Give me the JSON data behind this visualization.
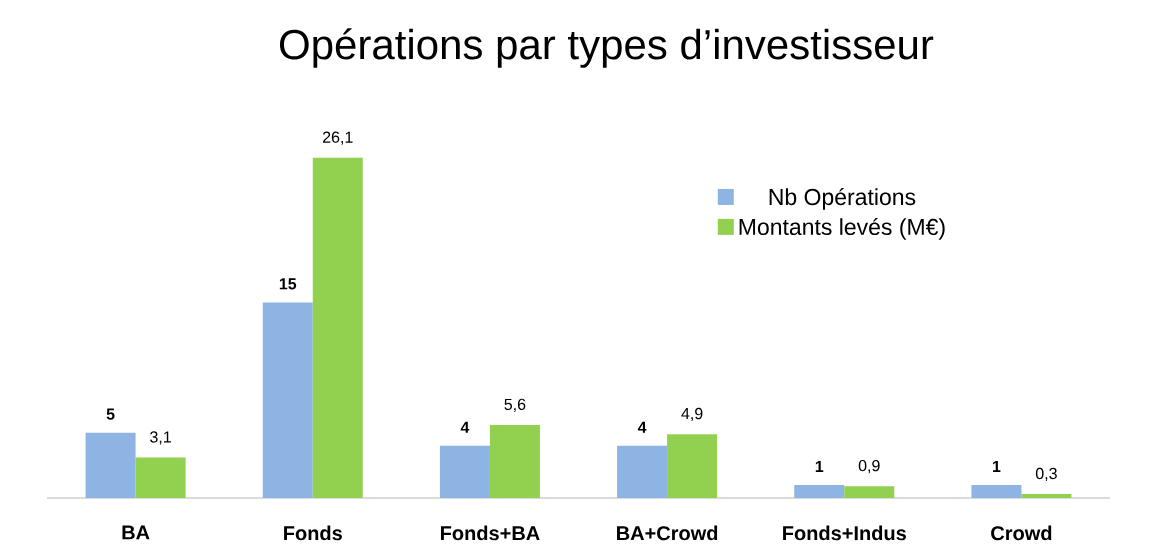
{
  "chart_data": {
    "type": "bar",
    "title": "Opérations par types d’investisseur",
    "categories": [
      "BA",
      "Fonds",
      "Fonds+BA",
      "BA+Crowd",
      "Fonds+Indus",
      "Crowd"
    ],
    "series": [
      {
        "name": "Nb Opérations",
        "color": "#8eb4e3",
        "values": [
          5,
          15,
          4,
          4,
          1,
          1
        ],
        "value_labels": [
          "5",
          "15",
          "4",
          "4",
          "1",
          "1"
        ]
      },
      {
        "name": "Montants levés (M€)",
        "color": "#92d050",
        "values": [
          3.1,
          26.1,
          5.6,
          4.9,
          0.9,
          0.3
        ],
        "value_labels": [
          "3,1",
          "26,1",
          "5,6",
          "4,9",
          "0,9",
          "0,3"
        ]
      }
    ],
    "legend": "top right"
  }
}
